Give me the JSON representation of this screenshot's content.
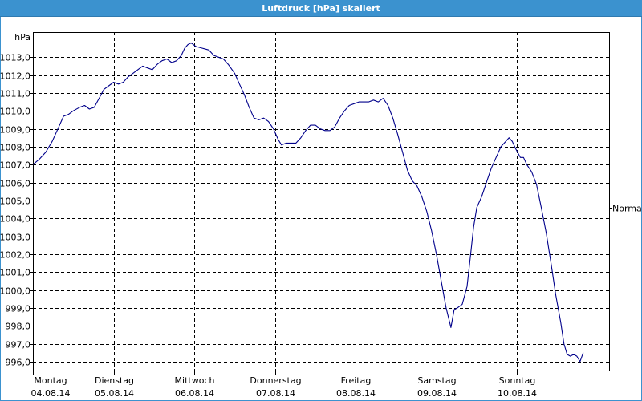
{
  "window": {
    "title": "Luftdruck [hPa] skaliert"
  },
  "chart_data": {
    "type": "line",
    "title": "Luftdruck [hPa] skaliert",
    "ylabel": "hPa",
    "ylim": [
      995.5,
      1014.4
    ],
    "yticks": [
      996,
      997,
      998,
      999,
      1000,
      1001,
      1002,
      1003,
      1004,
      1005,
      1006,
      1007,
      1008,
      1009,
      1010,
      1011,
      1012,
      1013
    ],
    "ytick_labels": [
      "996,0",
      "997,0",
      "998,0",
      "999,0",
      "1000,0",
      "1001,0",
      "1002,0",
      "1003,0",
      "1004,0",
      "1005,0",
      "1006,0",
      "1007,0",
      "1008,0",
      "1009,0",
      "1010,0",
      "1011,0",
      "1012,0",
      "1013,0"
    ],
    "xlim": [
      0,
      7.14
    ],
    "xticks": [
      {
        "day": "Montag",
        "date": "04.08.14",
        "x": 0
      },
      {
        "day": "Dienstag",
        "date": "05.08.14",
        "x": 1
      },
      {
        "day": "Mittwoch",
        "date": "06.08.14",
        "x": 2
      },
      {
        "day": "Donnerstag",
        "date": "07.08.14",
        "x": 3
      },
      {
        "day": "Freitag",
        "date": "08.08.14",
        "x": 4
      },
      {
        "day": "Samstag",
        "date": "09.08.14",
        "x": 5
      },
      {
        "day": "Sonntag",
        "date": "10.08.14",
        "x": 6
      }
    ],
    "annotation": {
      "text": "Normal",
      "value": 1004.6
    },
    "grid": true,
    "series": [
      {
        "color": "#00008b",
        "points": [
          [
            0.0,
            1007.0
          ],
          [
            0.08,
            1007.3
          ],
          [
            0.16,
            1007.7
          ],
          [
            0.24,
            1008.3
          ],
          [
            0.32,
            1009.1
          ],
          [
            0.38,
            1009.7
          ],
          [
            0.44,
            1009.8
          ],
          [
            0.5,
            1010.0
          ],
          [
            0.58,
            1010.2
          ],
          [
            0.64,
            1010.3
          ],
          [
            0.7,
            1010.1
          ],
          [
            0.76,
            1010.2
          ],
          [
            0.82,
            1010.7
          ],
          [
            0.88,
            1011.2
          ],
          [
            0.94,
            1011.4
          ],
          [
            1.0,
            1011.6
          ],
          [
            1.06,
            1011.5
          ],
          [
            1.12,
            1011.6
          ],
          [
            1.18,
            1011.9
          ],
          [
            1.24,
            1012.1
          ],
          [
            1.3,
            1012.3
          ],
          [
            1.36,
            1012.5
          ],
          [
            1.42,
            1012.4
          ],
          [
            1.48,
            1012.3
          ],
          [
            1.54,
            1012.6
          ],
          [
            1.6,
            1012.8
          ],
          [
            1.66,
            1012.9
          ],
          [
            1.72,
            1012.7
          ],
          [
            1.78,
            1012.8
          ],
          [
            1.84,
            1013.1
          ],
          [
            1.88,
            1013.5
          ],
          [
            1.92,
            1013.7
          ],
          [
            1.96,
            1013.8
          ],
          [
            2.02,
            1013.6
          ],
          [
            2.1,
            1013.5
          ],
          [
            2.18,
            1013.4
          ],
          [
            2.24,
            1013.1
          ],
          [
            2.3,
            1013.0
          ],
          [
            2.36,
            1012.9
          ],
          [
            2.42,
            1012.6
          ],
          [
            2.5,
            1012.1
          ],
          [
            2.56,
            1011.5
          ],
          [
            2.62,
            1010.9
          ],
          [
            2.68,
            1010.2
          ],
          [
            2.74,
            1009.6
          ],
          [
            2.8,
            1009.5
          ],
          [
            2.86,
            1009.6
          ],
          [
            2.92,
            1009.4
          ],
          [
            2.98,
            1009.0
          ],
          [
            3.04,
            1008.4
          ],
          [
            3.08,
            1008.1
          ],
          [
            3.14,
            1008.2
          ],
          [
            3.2,
            1008.2
          ],
          [
            3.26,
            1008.2
          ],
          [
            3.32,
            1008.5
          ],
          [
            3.38,
            1008.9
          ],
          [
            3.44,
            1009.2
          ],
          [
            3.5,
            1009.2
          ],
          [
            3.56,
            1009.0
          ],
          [
            3.62,
            1008.9
          ],
          [
            3.68,
            1008.9
          ],
          [
            3.74,
            1009.1
          ],
          [
            3.8,
            1009.6
          ],
          [
            3.86,
            1010.0
          ],
          [
            3.92,
            1010.3
          ],
          [
            3.98,
            1010.4
          ],
          [
            4.04,
            1010.5
          ],
          [
            4.1,
            1010.5
          ],
          [
            4.16,
            1010.5
          ],
          [
            4.22,
            1010.6
          ],
          [
            4.28,
            1010.5
          ],
          [
            4.34,
            1010.7
          ],
          [
            4.4,
            1010.3
          ],
          [
            4.46,
            1009.6
          ],
          [
            4.52,
            1008.7
          ],
          [
            4.58,
            1007.7
          ],
          [
            4.64,
            1006.7
          ],
          [
            4.7,
            1006.1
          ],
          [
            4.76,
            1005.8
          ],
          [
            4.82,
            1005.2
          ],
          [
            4.88,
            1004.4
          ],
          [
            4.94,
            1003.3
          ],
          [
            5.0,
            1002.0
          ],
          [
            5.06,
            1000.5
          ],
          [
            5.12,
            999.0
          ],
          [
            5.18,
            997.9
          ],
          [
            5.22,
            998.9
          ],
          [
            5.26,
            999.0
          ],
          [
            5.32,
            999.2
          ],
          [
            5.38,
            1000.2
          ],
          [
            5.42,
            1001.8
          ],
          [
            5.46,
            1003.5
          ],
          [
            5.5,
            1004.6
          ],
          [
            5.56,
            1005.2
          ],
          [
            5.62,
            1006.0
          ],
          [
            5.68,
            1006.8
          ],
          [
            5.74,
            1007.4
          ],
          [
            5.8,
            1008.0
          ],
          [
            5.86,
            1008.3
          ],
          [
            5.9,
            1008.5
          ],
          [
            5.94,
            1008.3
          ],
          [
            5.98,
            1007.9
          ],
          [
            6.04,
            1007.4
          ],
          [
            6.08,
            1007.4
          ],
          [
            6.12,
            1007.0
          ],
          [
            6.18,
            1006.6
          ],
          [
            6.24,
            1005.9
          ],
          [
            6.3,
            1004.6
          ],
          [
            6.36,
            1003.2
          ],
          [
            6.42,
            1001.5
          ],
          [
            6.48,
            999.7
          ],
          [
            6.54,
            998.2
          ],
          [
            6.58,
            997.0
          ],
          [
            6.62,
            996.4
          ],
          [
            6.66,
            996.3
          ],
          [
            6.7,
            996.4
          ],
          [
            6.74,
            996.3
          ],
          [
            6.78,
            996.0
          ],
          [
            6.82,
            996.5
          ]
        ]
      }
    ]
  }
}
